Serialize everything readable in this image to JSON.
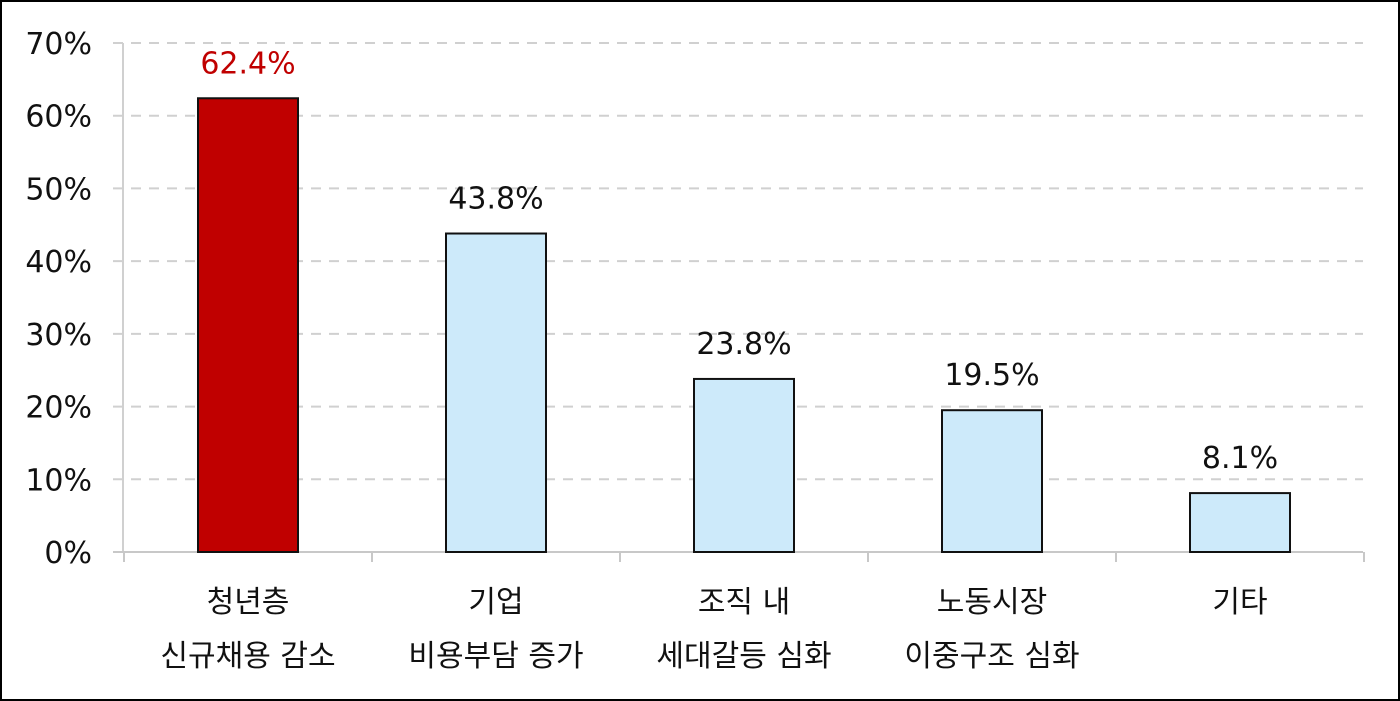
{
  "chart_data": {
    "type": "bar",
    "title": "",
    "xlabel": "",
    "ylabel": "",
    "ylim": [
      0,
      70
    ],
    "y_ticks": [
      "0%",
      "10%",
      "20%",
      "30%",
      "40%",
      "50%",
      "60%",
      "70%"
    ],
    "grid": "horizontal dashed",
    "legend": "none",
    "categories": [
      [
        "청년층",
        "신규채용 감소"
      ],
      [
        "기업",
        "비용부담 증가"
      ],
      [
        "조직 내",
        "세대갈등 심화"
      ],
      [
        "노동시장",
        "이중구조 심화"
      ],
      [
        "기타"
      ]
    ],
    "values": [
      62.4,
      43.8,
      23.8,
      19.5,
      8.1
    ],
    "value_labels": [
      "62.4%",
      "43.8%",
      "23.8%",
      "19.5%",
      "8.1%"
    ],
    "colors": [
      "#c00000",
      "#cdeafa",
      "#cdeafa",
      "#cdeafa",
      "#cdeafa"
    ],
    "label_colors": [
      "#c00000",
      "#111111",
      "#111111",
      "#111111",
      "#111111"
    ]
  }
}
